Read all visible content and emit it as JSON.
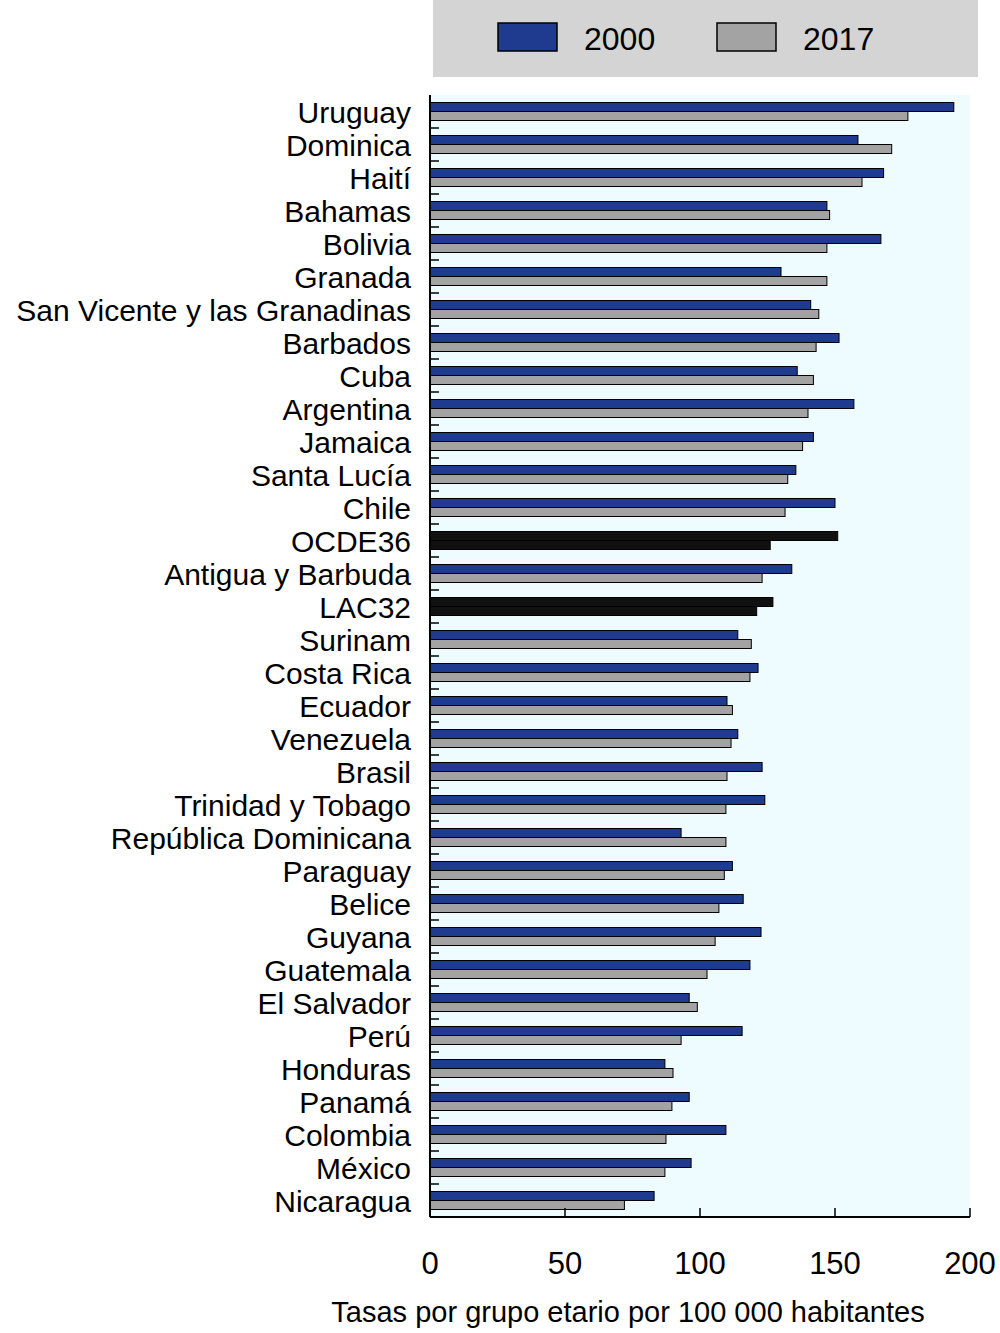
{
  "chart_data": {
    "type": "bar",
    "orientation": "horizontal",
    "xlabel": "Tasas por grupo etario por 100 000 habitantes",
    "categories": [
      "Uruguay",
      "Dominica",
      "Haití",
      "Bahamas",
      "Bolivia",
      "Granada",
      "San Vicente y las Granadinas",
      "Barbados",
      "Cuba",
      "Argentina",
      "Jamaica",
      "Santa Lucía",
      "Chile",
      "OCDE36",
      "Antigua y Barbuda",
      "LAC32",
      "Surinam",
      "Costa Rica",
      "Ecuador",
      "Venezuela",
      "Brasil",
      "Trinidad y Tobago",
      "República Dominicana",
      "Paraguay",
      "Belice",
      "Guyana",
      "Guatemala",
      "El Salvador",
      "Perú",
      "Honduras",
      "Panamá",
      "Colombia",
      "México",
      "Nicaragua"
    ],
    "series": [
      {
        "name": "2000",
        "color": "#1f3b8f",
        "colors": [
          "#1f3b8f",
          "#1f3b8f",
          "#1f3b8f",
          "#1f3b8f",
          "#1f3b8f",
          "#1f3b8f",
          "#1f3b8f",
          "#1f3b8f",
          "#1f3b8f",
          "#1f3b8f",
          "#1f3b8f",
          "#1f3b8f",
          "#1f3b8f",
          "#111111",
          "#1f3b8f",
          "#111111",
          "#1f3b8f",
          "#1f3b8f",
          "#1f3b8f",
          "#1f3b8f",
          "#1f3b8f",
          "#1f3b8f",
          "#1f3b8f",
          "#1f3b8f",
          "#1f3b8f",
          "#1f3b8f",
          "#1f3b8f",
          "#1f3b8f",
          "#1f3b8f",
          "#1f3b8f",
          "#1f3b8f",
          "#1f3b8f",
          "#1f3b8f",
          "#1f3b8f"
        ],
        "values": [
          194,
          158.5,
          168,
          147,
          167,
          130,
          141,
          151.5,
          136,
          157,
          142,
          135.5,
          150,
          151,
          134,
          127,
          114,
          121.5,
          110,
          114,
          123,
          124,
          93,
          112,
          116,
          122.6,
          118.5,
          96,
          115.6,
          87,
          96,
          109.6,
          96.7,
          83
        ]
      },
      {
        "name": "2017",
        "color": "#a3a3a3",
        "colors": [
          "#a3a3a3",
          "#a3a3a3",
          "#a3a3a3",
          "#a3a3a3",
          "#a3a3a3",
          "#a3a3a3",
          "#a3a3a3",
          "#a3a3a3",
          "#a3a3a3",
          "#a3a3a3",
          "#a3a3a3",
          "#a3a3a3",
          "#a3a3a3",
          "#111111",
          "#a3a3a3",
          "#111111",
          "#a3a3a3",
          "#a3a3a3",
          "#a3a3a3",
          "#a3a3a3",
          "#a3a3a3",
          "#a3a3a3",
          "#a3a3a3",
          "#a3a3a3",
          "#a3a3a3",
          "#a3a3a3",
          "#a3a3a3",
          "#a3a3a3",
          "#a3a3a3",
          "#a3a3a3",
          "#a3a3a3",
          "#a3a3a3",
          "#a3a3a3",
          "#a3a3a3"
        ],
        "values": [
          177,
          171,
          160,
          148,
          147,
          147,
          144,
          143,
          142,
          140,
          138,
          132.5,
          131.5,
          126,
          123,
          121,
          119,
          118.5,
          112,
          111.5,
          110,
          109.6,
          109.6,
          109,
          107,
          105.6,
          102.6,
          99,
          93,
          90,
          89.6,
          87.4,
          87,
          72
        ]
      }
    ],
    "xlim": [
      0,
      200
    ],
    "xticks": [
      0,
      50,
      100,
      150,
      200
    ],
    "grid": false,
    "legend": "top"
  }
}
